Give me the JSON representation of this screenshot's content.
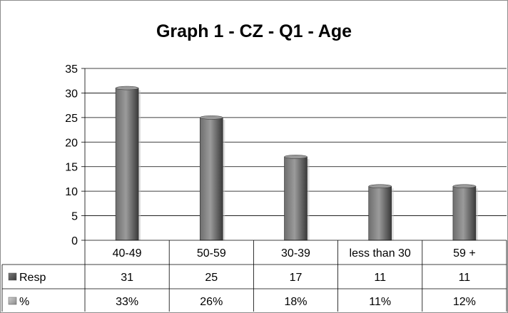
{
  "chart_data": {
    "type": "bar",
    "title": "Graph 1 - CZ - Q1 - Age",
    "xlabel": "",
    "ylabel": "",
    "categories": [
      "40-49",
      "50-59",
      "30-39",
      "less than 30",
      "59 +"
    ],
    "series": [
      {
        "name": "Resp",
        "values": [
          31,
          25,
          17,
          11,
          11
        ]
      }
    ],
    "table_rows": [
      {
        "label": "Resp",
        "values": [
          "31",
          "25",
          "17",
          "11",
          "11"
        ]
      },
      {
        "label": "%",
        "values": [
          "33%",
          "26%",
          "18%",
          "11%",
          "12%"
        ]
      }
    ],
    "ylim": [
      0,
      35
    ],
    "yticks": [
      0,
      5,
      10,
      15,
      20,
      25,
      30,
      35
    ],
    "grid": true,
    "legend": "data table",
    "colors": {
      "bar": "#5a5a5a",
      "bar_highlight": "#9a9a9a",
      "bar_shadow": "#2e2e2e",
      "grid": "#000000"
    }
  }
}
